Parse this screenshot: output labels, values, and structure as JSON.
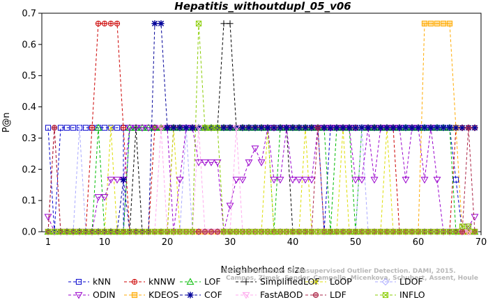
{
  "chart_data": {
    "type": "line",
    "title": "Hepatitis_withoutdupl_05_v06",
    "xlabel": "Neighborhood size",
    "ylabel": "P@n",
    "xlim": [
      0,
      70
    ],
    "ylim": [
      0,
      0.7
    ],
    "xticks": [
      1,
      10,
      20,
      30,
      40,
      50,
      60,
      70
    ],
    "yticks": [
      0.0,
      0.1,
      0.2,
      0.3,
      0.4,
      0.5,
      0.6,
      0.7
    ],
    "ytick_labels": [
      "0.0",
      "0.1",
      "0.2",
      "0.3",
      "0.4",
      "0.5",
      "0.6",
      "0.7"
    ],
    "credit": [
      "Campos, Zimek, Sander, Campello, Micenkova, Schubert, Assent, Houle",
      "On the Evaluation of Unsupervised Outlier Detection. DAMI, 2015."
    ],
    "legend_placement": "bottom",
    "series": [
      {
        "name": "kNN",
        "color": "#0000cc",
        "marker": "square",
        "segments": [
          [
            1,
            0.333
          ],
          [
            2,
            0
          ],
          [
            3,
            0.333
          ],
          [
            13,
            0.333
          ],
          [
            13.01,
            0
          ],
          [
            14,
            0.333
          ],
          [
            44,
            0.333
          ],
          [
            45,
            0
          ],
          [
            46,
            0.333
          ],
          [
            65,
            0.333
          ],
          [
            66,
            0.1667
          ],
          [
            67,
            0
          ],
          [
            69,
            0
          ]
        ]
      },
      {
        "name": "kNNW",
        "color": "#cc0000",
        "marker": "circle",
        "segments": [
          [
            1,
            0
          ],
          [
            2,
            0.333
          ],
          [
            3,
            0
          ],
          [
            7,
            0
          ],
          [
            8,
            0.333
          ],
          [
            9,
            0.667
          ],
          [
            12,
            0.667
          ],
          [
            13,
            0.333
          ],
          [
            14,
            0
          ],
          [
            17,
            0
          ],
          [
            18,
            0.333
          ],
          [
            56,
            0.333
          ],
          [
            57,
            0
          ],
          [
            65,
            0
          ],
          [
            66,
            0.333
          ],
          [
            69,
            0.333
          ]
        ]
      },
      {
        "name": "LOF",
        "color": "#00bb00",
        "marker": "triangle",
        "segments": [
          [
            1,
            0
          ],
          [
            8,
            0
          ],
          [
            9,
            0.333
          ],
          [
            10,
            0
          ],
          [
            13,
            0
          ],
          [
            14,
            0.333
          ],
          [
            36,
            0.333
          ],
          [
            37,
            0
          ],
          [
            38,
            0.333
          ],
          [
            45,
            0.333
          ],
          [
            46,
            0
          ],
          [
            47,
            0.333
          ],
          [
            49,
            0.333
          ],
          [
            50,
            0
          ],
          [
            51,
            0.333
          ],
          [
            65,
            0.333
          ],
          [
            66,
            0
          ],
          [
            69,
            0
          ]
        ]
      },
      {
        "name": "SimplifiedLOF",
        "color": "#000000",
        "marker": "plus",
        "segments": [
          [
            1,
            0
          ],
          [
            14,
            0
          ],
          [
            15,
            0.333
          ],
          [
            16,
            0
          ],
          [
            20,
            0
          ],
          [
            21,
            0.333
          ],
          [
            28,
            0.333
          ],
          [
            29,
            0.667
          ],
          [
            30,
            0.667
          ],
          [
            31,
            0.333
          ],
          [
            39,
            0.333
          ],
          [
            40,
            0
          ],
          [
            69,
            0
          ]
        ]
      },
      {
        "name": "LoOP",
        "color": "#dddd00",
        "marker": "x",
        "segments": [
          [
            1,
            0
          ],
          [
            10,
            0
          ],
          [
            11,
            0.333
          ],
          [
            12,
            0
          ],
          [
            20,
            0
          ],
          [
            21,
            0.333
          ],
          [
            22,
            0
          ],
          [
            35,
            0
          ],
          [
            36,
            0.333
          ],
          [
            37,
            0
          ],
          [
            41,
            0
          ],
          [
            42,
            0.333
          ],
          [
            43,
            0
          ],
          [
            47,
            0
          ],
          [
            48,
            0.333
          ],
          [
            49,
            0
          ],
          [
            54,
            0
          ],
          [
            55,
            0.333
          ],
          [
            56,
            0
          ],
          [
            69,
            0
          ]
        ]
      },
      {
        "name": "LDOF",
        "color": "#aaaaff",
        "marker": "diamond",
        "segments": [
          [
            1,
            0
          ],
          [
            5,
            0
          ],
          [
            6,
            0.333
          ],
          [
            7,
            0
          ],
          [
            22,
            0
          ],
          [
            23,
            0.333
          ],
          [
            24,
            0
          ],
          [
            50,
            0
          ],
          [
            51,
            0.333
          ],
          [
            52,
            0
          ],
          [
            69,
            0
          ]
        ]
      },
      {
        "name": "ODIN",
        "color": "#9900cc",
        "marker": "triangle-down",
        "segments": [
          [
            1,
            0.0476
          ],
          [
            2,
            0
          ],
          [
            8,
            0
          ],
          [
            9,
            0.111
          ],
          [
            10,
            0.111
          ],
          [
            11,
            0.1667
          ],
          [
            12,
            0.1667
          ],
          [
            13,
            0.1667
          ],
          [
            14,
            0.333
          ],
          [
            20,
            0.333
          ],
          [
            21,
            0
          ],
          [
            22,
            0.1667
          ],
          [
            23,
            0.333
          ],
          [
            24,
            0.333
          ],
          [
            25,
            0.2222
          ],
          [
            26,
            0.2222
          ],
          [
            27,
            0.2222
          ],
          [
            28,
            0.2222
          ],
          [
            29,
            0
          ],
          [
            31,
            0.1667
          ],
          [
            32,
            0.1667
          ],
          [
            33,
            0.2222
          ],
          [
            34,
            0.2667
          ],
          [
            35,
            0.2222
          ],
          [
            36,
            0.333
          ],
          [
            37,
            0.1667
          ],
          [
            38,
            0.1667
          ],
          [
            39,
            0.333
          ],
          [
            40,
            0.1667
          ],
          [
            41,
            0.1667
          ],
          [
            42,
            0.1667
          ],
          [
            43,
            0.1667
          ],
          [
            44,
            0.333
          ],
          [
            45,
            0.333
          ],
          [
            49,
            0.333
          ],
          [
            50,
            0.1667
          ],
          [
            51,
            0.1667
          ],
          [
            52,
            0.333
          ],
          [
            53,
            0.1667
          ],
          [
            54,
            0.333
          ],
          [
            57,
            0.333
          ],
          [
            58,
            0.1667
          ],
          [
            59,
            0.333
          ],
          [
            60,
            0.333
          ],
          [
            61,
            0.1667
          ],
          [
            62,
            0.333
          ],
          [
            63,
            0.1667
          ],
          [
            64,
            0
          ],
          [
            67,
            0
          ],
          [
            68,
            0.0167
          ],
          [
            69,
            0.0476
          ]
        ]
      },
      {
        "name": "KDEOS",
        "color": "#ffaa00",
        "marker": "square-filled",
        "segments": [
          [
            1,
            0
          ],
          [
            60,
            0
          ],
          [
            61,
            0.667
          ],
          [
            65,
            0.667
          ],
          [
            66,
            0.333
          ],
          [
            67,
            0
          ],
          [
            69,
            0
          ]
        ]
      },
      {
        "name": "COF",
        "color": "#000099",
        "marker": "asterisk",
        "segments": [
          [
            1,
            0
          ],
          [
            12,
            0
          ],
          [
            13,
            0.1667
          ],
          [
            14,
            0
          ],
          [
            17,
            0
          ],
          [
            18,
            0.667
          ],
          [
            19,
            0.667
          ],
          [
            20,
            0.333
          ],
          [
            69,
            0.333
          ]
        ]
      },
      {
        "name": "FastABOD",
        "color": "#ffaaee",
        "marker": "triangle-down-open",
        "segments": [
          [
            1,
            0
          ],
          [
            18,
            0
          ],
          [
            19,
            0.333
          ],
          [
            20,
            0
          ],
          [
            24,
            0
          ],
          [
            25,
            0.333
          ],
          [
            26,
            0
          ],
          [
            30,
            0
          ],
          [
            31,
            0.333
          ],
          [
            32,
            0
          ],
          [
            69,
            0
          ]
        ]
      },
      {
        "name": "LDF",
        "color": "#aa2244",
        "marker": "circle-filled",
        "segments": [
          [
            1,
            0
          ],
          [
            2,
            0.333
          ],
          [
            3,
            0
          ],
          [
            43,
            0
          ],
          [
            44,
            0.333
          ],
          [
            45,
            0
          ],
          [
            67,
            0
          ],
          [
            68,
            0.333
          ],
          [
            69,
            0
          ]
        ]
      },
      {
        "name": "INFLO",
        "color": "#88cc00",
        "marker": "square-x",
        "segments": [
          [
            1,
            0
          ],
          [
            24,
            0
          ],
          [
            25,
            0.667
          ],
          [
            26,
            0.333
          ],
          [
            28,
            0.333
          ],
          [
            29,
            0
          ],
          [
            66,
            0
          ],
          [
            67,
            0.0167
          ],
          [
            68,
            0.0167
          ],
          [
            69,
            0
          ]
        ]
      }
    ]
  },
  "legend_rows": [
    [
      "kNN",
      "kNNW",
      "LOF",
      "SimplifiedLOF",
      "LoOP",
      "LDOF"
    ],
    [
      "ODIN",
      "KDEOS",
      "COF",
      "FastABOD",
      "LDF",
      "INFLO"
    ]
  ]
}
